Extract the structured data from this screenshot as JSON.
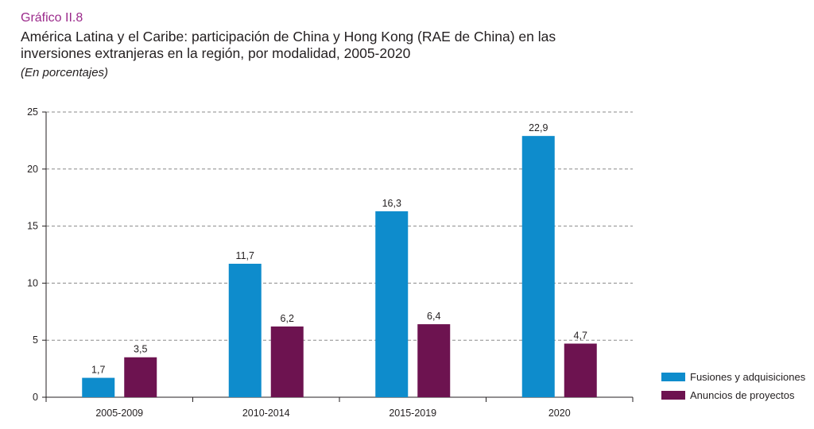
{
  "header": {
    "label": "Gráfico II.8",
    "title": "América Latina y el Caribe: participación de China y Hong Kong (RAE de China) en las inversiones extranjeras en la región, por modalidad, 2005-2020",
    "subtitle": "(En porcentajes)"
  },
  "chart_data": {
    "type": "bar",
    "categories": [
      "2005-2009",
      "2010-2014",
      "2015-2019",
      "2020"
    ],
    "series": [
      {
        "name": "Fusiones y adquisiciones",
        "color": "#0e8ccc",
        "values": [
          1.7,
          11.7,
          16.3,
          22.9
        ],
        "labels": [
          "1,7",
          "11,7",
          "16,3",
          "22,9"
        ]
      },
      {
        "name": "Anuncios de proyectos",
        "color": "#6d1350",
        "values": [
          3.5,
          6.2,
          6.4,
          4.7
        ],
        "labels": [
          "3,5",
          "6,2",
          "6,4",
          "4,7"
        ]
      }
    ],
    "ylim": [
      0,
      25
    ],
    "yticks": [
      0,
      5,
      10,
      15,
      20,
      25
    ],
    "grid": true,
    "legend_position": "bottom-right"
  }
}
